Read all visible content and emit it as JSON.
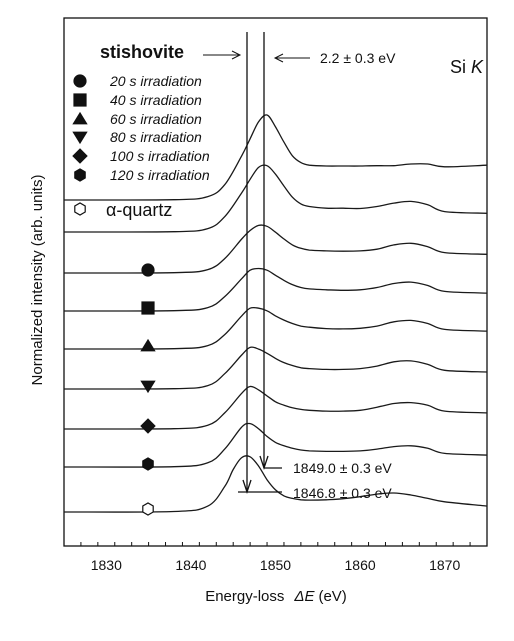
{
  "chart_data": {
    "type": "line",
    "title": "",
    "xlabel_prefix": "Energy-loss",
    "xlabel_symbol": "ΔE",
    "xlabel_unit": "(eV)",
    "ylabel": "Normalized intensity (arb. units)",
    "xlim": [
      1825,
      1875
    ],
    "xticks": [
      1830,
      1840,
      1850,
      1860,
      1870
    ],
    "edge_label_main": "Si ",
    "edge_label_italic": "K",
    "stishovite_label": "stishovite",
    "shift_label": "2.2 ± 0.3 eV",
    "peak_annotations": [
      "1849.0 ± 0.3 eV",
      "1846.8 ± 0.3 eV"
    ],
    "legend": [
      {
        "name": "20 s irradiation",
        "marker": "circle-filled"
      },
      {
        "name": "40 s irradiation",
        "marker": "square-filled"
      },
      {
        "name": "60 s irradiation",
        "marker": "triangle-up-filled"
      },
      {
        "name": "80 s irradiation",
        "marker": "triangle-down-filled"
      },
      {
        "name": "100 s irradiation",
        "marker": "diamond-filled"
      },
      {
        "name": "120 s irradiation",
        "marker": "hexagon-filled"
      },
      {
        "name": "α-quartz",
        "marker": "hexagon-open"
      }
    ],
    "series": [
      {
        "marker": "none",
        "x": [
          1825,
          1838,
          1842,
          1844,
          1846,
          1847,
          1848,
          1849,
          1850,
          1851,
          1852,
          1853,
          1854,
          1856,
          1858,
          1860,
          1862,
          1864,
          1866,
          1868,
          1870,
          1875
        ],
        "y": [
          0,
          0.02,
          0.2,
          0.9,
          2.6,
          3.6,
          4.6,
          5.0,
          4.3,
          3.4,
          2.6,
          2.2,
          2.05,
          2.0,
          2.0,
          2.0,
          2.02,
          2.02,
          2.12,
          2.12,
          1.95,
          2.05
        ]
      },
      {
        "marker": "none",
        "x": [
          1825,
          1838,
          1842,
          1844,
          1846,
          1847,
          1848,
          1849,
          1850,
          1851,
          1852,
          1853,
          1854,
          1856,
          1858,
          1860,
          1862,
          1864,
          1866,
          1868,
          1870,
          1875
        ],
        "y": [
          0,
          0.02,
          0.2,
          0.9,
          2.3,
          3.1,
          3.8,
          3.9,
          3.4,
          2.7,
          2.05,
          1.65,
          1.5,
          1.4,
          1.4,
          1.38,
          1.5,
          1.7,
          1.8,
          1.6,
          1.2,
          1.1
        ]
      },
      {
        "marker": "filled circle",
        "x": [
          1825,
          1838,
          1842,
          1844,
          1846,
          1847,
          1848,
          1849,
          1850,
          1851,
          1852,
          1853,
          1854,
          1856,
          1858,
          1860,
          1862,
          1864,
          1866,
          1868,
          1870,
          1875
        ],
        "y": [
          0,
          0.02,
          0.2,
          0.85,
          2.0,
          2.5,
          2.8,
          2.75,
          2.4,
          2.0,
          1.65,
          1.45,
          1.35,
          1.3,
          1.28,
          1.3,
          1.4,
          1.65,
          1.75,
          1.55,
          1.2,
          1.1
        ]
      },
      {
        "marker": "filled square",
        "x": [
          1825,
          1838,
          1842,
          1844,
          1846,
          1847,
          1848,
          1849,
          1850,
          1851,
          1852,
          1853,
          1854,
          1856,
          1858,
          1860,
          1862,
          1864,
          1866,
          1868,
          1870,
          1875
        ],
        "y": [
          0,
          0.02,
          0.2,
          0.85,
          1.9,
          2.4,
          2.5,
          2.4,
          2.1,
          1.8,
          1.55,
          1.38,
          1.3,
          1.25,
          1.22,
          1.25,
          1.38,
          1.62,
          1.7,
          1.5,
          1.15,
          1.05
        ]
      },
      {
        "marker": "filled triangle up",
        "x": [
          1825,
          1838,
          1842,
          1844,
          1846,
          1847,
          1848,
          1849,
          1850,
          1851,
          1852,
          1853,
          1854,
          1856,
          1858,
          1860,
          1862,
          1864,
          1866,
          1868,
          1870,
          1875
        ],
        "y": [
          0,
          0.02,
          0.2,
          0.85,
          1.95,
          2.4,
          2.4,
          2.25,
          1.95,
          1.7,
          1.5,
          1.35,
          1.28,
          1.2,
          1.18,
          1.22,
          1.35,
          1.6,
          1.68,
          1.5,
          1.15,
          1.05
        ]
      },
      {
        "marker": "filled triangle down",
        "x": [
          1825,
          1838,
          1842,
          1844,
          1846,
          1847,
          1848,
          1849,
          1850,
          1851,
          1852,
          1853,
          1854,
          1856,
          1858,
          1860,
          1862,
          1864,
          1866,
          1868,
          1870,
          1875
        ],
        "y": [
          0,
          0.02,
          0.2,
          0.9,
          2.0,
          2.45,
          2.35,
          2.1,
          1.8,
          1.55,
          1.38,
          1.25,
          1.2,
          1.15,
          1.15,
          1.2,
          1.35,
          1.6,
          1.65,
          1.45,
          1.1,
          1.0
        ]
      },
      {
        "marker": "filled diamond",
        "x": [
          1825,
          1838,
          1842,
          1844,
          1846,
          1847,
          1848,
          1849,
          1850,
          1851,
          1852,
          1853,
          1854,
          1856,
          1858,
          1860,
          1862,
          1864,
          1866,
          1868,
          1870,
          1875
        ],
        "y": [
          0,
          0.02,
          0.22,
          0.95,
          2.1,
          2.5,
          2.3,
          1.95,
          1.6,
          1.4,
          1.25,
          1.15,
          1.1,
          1.05,
          1.05,
          1.1,
          1.28,
          1.5,
          1.55,
          1.4,
          1.05,
          0.95
        ]
      },
      {
        "marker": "filled hexagon",
        "x": [
          1825,
          1838,
          1842,
          1844,
          1846,
          1847,
          1848,
          1849,
          1850,
          1851,
          1852,
          1853,
          1854,
          1856,
          1858,
          1860,
          1862,
          1864,
          1866,
          1868,
          1870,
          1875
        ],
        "y": [
          0,
          0.02,
          0.25,
          1.05,
          2.35,
          2.55,
          2.25,
          1.8,
          1.45,
          1.25,
          1.1,
          1.0,
          0.95,
          0.92,
          0.92,
          0.95,
          1.05,
          1.2,
          1.25,
          1.1,
          0.8,
          0.7
        ]
      },
      {
        "marker": "open hexagon",
        "x": [
          1825,
          1838,
          1842,
          1844,
          1845,
          1846,
          1847,
          1848,
          1849,
          1850,
          1851,
          1852,
          1853,
          1854,
          1856,
          1858,
          1860,
          1862,
          1864,
          1866,
          1868,
          1870,
          1875
        ],
        "y": [
          0,
          0.03,
          0.35,
          1.5,
          2.5,
          3.2,
          3.25,
          2.7,
          1.9,
          1.3,
          0.95,
          0.8,
          0.72,
          0.7,
          0.72,
          0.78,
          0.9,
          1.05,
          1.12,
          1.0,
          0.8,
          0.6,
          0.35
        ]
      }
    ]
  }
}
